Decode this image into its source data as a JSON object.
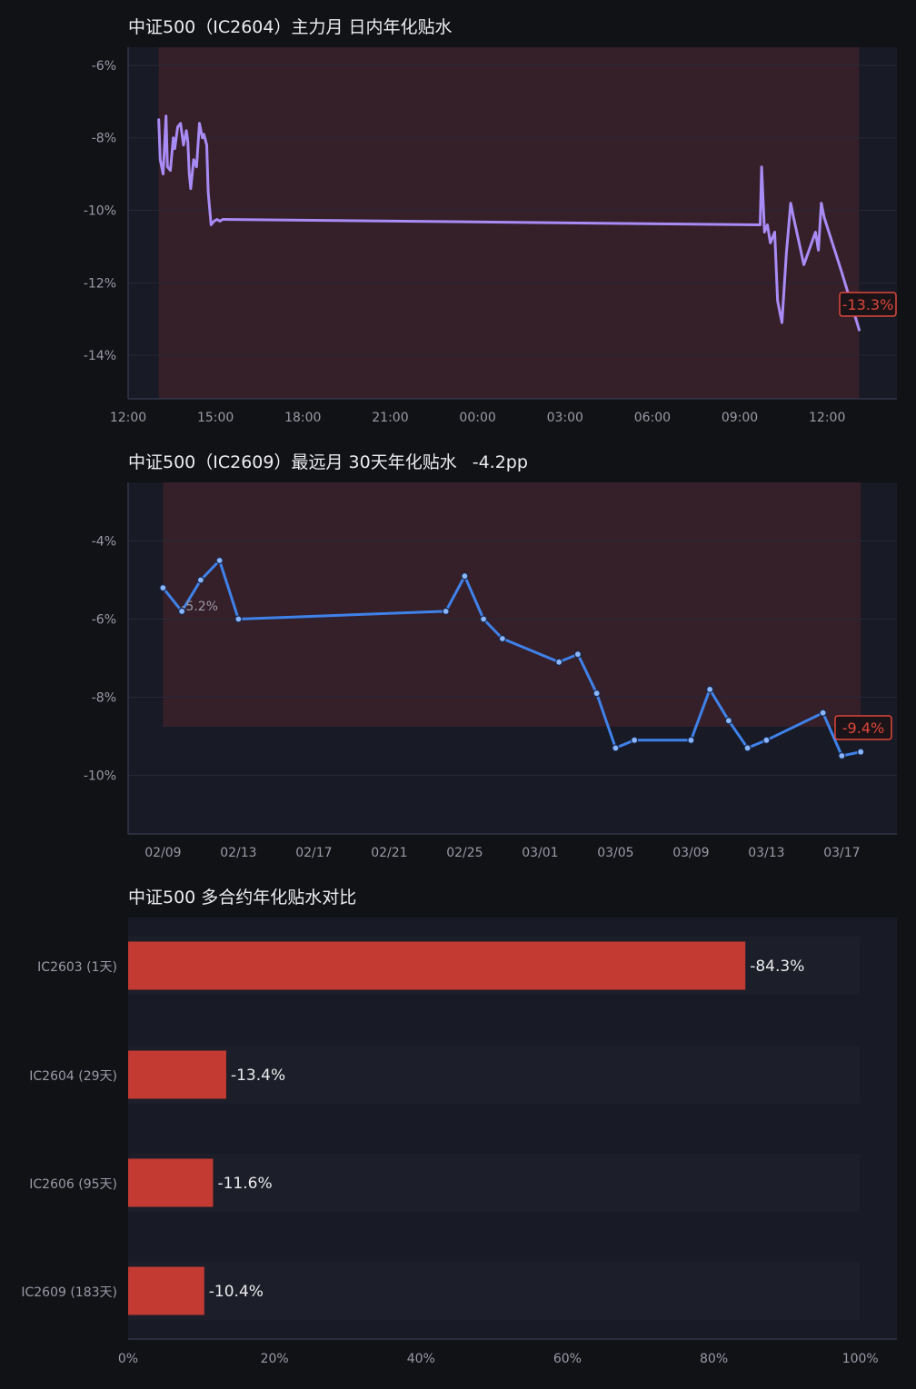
{
  "colors": {
    "page_bg": "#111216",
    "panel_bg": "#181a25",
    "shade": "#351f29",
    "line_intraday": "#a98bf5",
    "line_daily": "#3f82ea",
    "bar": "#c23a32",
    "badge": "#e0463a",
    "tick_text": "#9a9aa6",
    "title_text": "#ececf0"
  },
  "chart_data": [
    {
      "type": "line",
      "title": "中证500（IC2604）主力月 日内年化贴水",
      "x_unit": "hours since 12:00",
      "x_ticks": [
        "12:00",
        "15:00",
        "18:00",
        "21:00",
        "00:00",
        "03:00",
        "06:00",
        "09:00",
        "12:00"
      ],
      "y_ticks": [
        "-6%",
        "-8%",
        "-10%",
        "-12%",
        "-14%"
      ],
      "ylim": [
        -15.2,
        -5.5
      ],
      "y_tick_values": [
        -6,
        -8,
        -10,
        -12,
        -14
      ],
      "grid": true,
      "series": [
        {
          "x": [
            1.05,
            1.1,
            1.2,
            1.3,
            1.35,
            1.45,
            1.55,
            1.6,
            1.7,
            1.8,
            1.9,
            2.0,
            2.05,
            2.1,
            2.15,
            2.25,
            2.35,
            2.45,
            2.55,
            2.6,
            2.7,
            2.75,
            2.85,
            2.95,
            3.05,
            3.15,
            3.25,
            3.3,
            21.7,
            21.75,
            21.85,
            21.95,
            22.05,
            22.1,
            22.2,
            22.3,
            22.45,
            22.6,
            22.75,
            22.85,
            23.2,
            23.6,
            23.7,
            23.8,
            23.9,
            24.5,
            25.1
          ],
          "y": [
            -7.5,
            -8.6,
            -9.0,
            -7.4,
            -8.8,
            -8.9,
            -8.0,
            -8.3,
            -7.7,
            -7.6,
            -8.2,
            -7.8,
            -8.1,
            -9.0,
            -9.4,
            -8.6,
            -8.8,
            -7.6,
            -8.0,
            -7.9,
            -8.2,
            -9.5,
            -10.4,
            -10.3,
            -10.25,
            -10.3,
            -10.25,
            -10.25,
            -10.4,
            -8.8,
            -10.6,
            -10.4,
            -10.9,
            -10.8,
            -10.6,
            -12.5,
            -13.1,
            -11.2,
            -9.8,
            -10.2,
            -11.5,
            -10.6,
            -11.1,
            -9.8,
            -10.2,
            -11.7,
            -13.3
          ]
        }
      ],
      "shade_x": [
        1.05,
        25.1
      ],
      "end_label": "-13.3%"
    },
    {
      "type": "line",
      "title": "中证500（IC2609）最远月 30天年化贴水",
      "change_label": "-4.2pp",
      "x_unit": "days since 02/09",
      "x_ticks": [
        "02/09",
        "02/13",
        "02/17",
        "02/21",
        "02/25",
        "03/01",
        "03/05",
        "03/09",
        "03/13",
        "03/17"
      ],
      "y_ticks": [
        "-4%",
        "-6%",
        "-8%",
        "-10%"
      ],
      "ylim": [
        -11.5,
        -2.5
      ],
      "y_tick_values": [
        -4,
        -6,
        -8,
        -10
      ],
      "grid": true,
      "series": [
        {
          "x": [
            0,
            1,
            2,
            3,
            4,
            15,
            16,
            17,
            18,
            21,
            22,
            23,
            24,
            25,
            28,
            29,
            30,
            31,
            32,
            35,
            36,
            37
          ],
          "y": [
            -5.2,
            -5.8,
            -5.0,
            -4.5,
            -6.0,
            -5.8,
            -4.9,
            -6.0,
            -6.5,
            -7.1,
            -6.9,
            -7.9,
            -9.3,
            -9.1,
            -9.1,
            -7.8,
            -8.6,
            -9.3,
            -9.1,
            -8.4,
            -9.5,
            -9.4
          ],
          "markers": true
        }
      ],
      "shade_x": [
        0,
        37
      ],
      "start_label": "-5.2%",
      "end_label": "-9.4%"
    },
    {
      "type": "bar",
      "orientation": "horizontal",
      "title": "中证500 多合约年化贴水对比",
      "categories": [
        "IC2603 (1天)",
        "IC2604 (29天)",
        "IC2606 (95天)",
        "IC2609 (183天)"
      ],
      "values": [
        84.3,
        13.4,
        11.6,
        10.4
      ],
      "value_labels": [
        "-84.3%",
        "-13.4%",
        "-11.6%",
        "-10.4%"
      ],
      "x_ticks": [
        "0%",
        "20%",
        "40%",
        "60%",
        "80%",
        "100%"
      ],
      "x_tick_values": [
        0,
        20,
        40,
        60,
        80,
        100
      ],
      "xlim": [
        0,
        105
      ]
    }
  ]
}
